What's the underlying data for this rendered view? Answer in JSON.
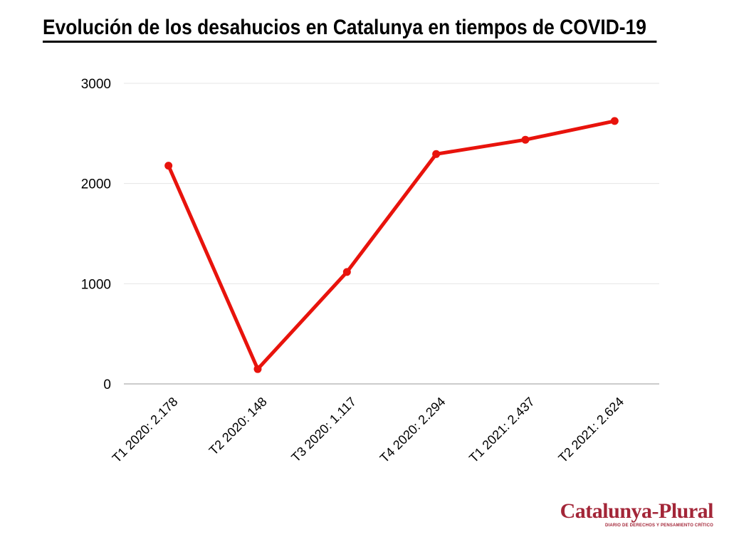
{
  "title": "Evolución de los desahucios en Catalunya en tiempos de COVID-19",
  "chart_data": {
    "type": "line",
    "title": "Evolución de los desahucios en Catalunya en tiempos de COVID-19",
    "categories": [
      "T1 2020: 2.178",
      "T2 2020: 148",
      "T3 2020: 1.117",
      "T4 2020: 2.294",
      "T1 2021: 2.437",
      "T2 2021: 2.624"
    ],
    "values": [
      2178,
      148,
      1117,
      2294,
      2437,
      2624
    ],
    "xlabel": "",
    "ylabel": "",
    "ylim": [
      0,
      3000
    ],
    "yticks": [
      0,
      1000,
      2000,
      3000
    ],
    "grid": true,
    "legend": "none",
    "x_tick_rotation": -45,
    "marker": "circle",
    "line_width": 5,
    "marker_radius": 5.5
  },
  "colors": {
    "series_red": "#e8130c",
    "grid_line": "#e4e4e4",
    "axis_line": "#999999",
    "tick_text": "#000000",
    "title_text": "#000000",
    "logo_red": "#a32638"
  },
  "logo": {
    "name": "Catalunya-Plural",
    "tagline": "DIARIO DE DERECHOS Y PENSAMIENTO CRÍTICO"
  }
}
